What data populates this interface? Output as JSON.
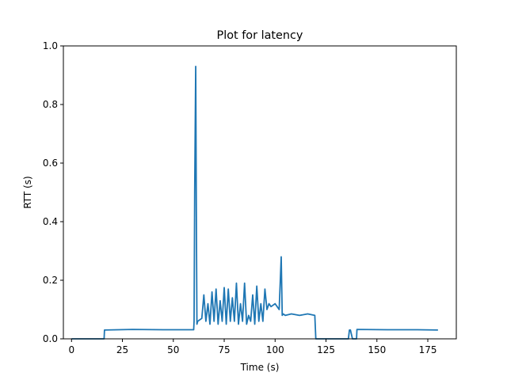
{
  "chart_data": {
    "type": "line",
    "title": "Plot for latency",
    "xlabel": "Time (s)",
    "ylabel": "RTT (s)",
    "xlim": [
      -4,
      189
    ],
    "ylim": [
      0,
      1.0
    ],
    "xticks": [
      0,
      25,
      50,
      75,
      100,
      125,
      150,
      175
    ],
    "yticks": [
      0.0,
      0.2,
      0.4,
      0.6,
      0.8,
      1.0
    ],
    "ytick_labels": [
      "0.0",
      "0.2",
      "0.4",
      "0.6",
      "0.8",
      "1.0"
    ],
    "grid": false,
    "line_color": "#1f77b4",
    "series": [
      {
        "x": [
          0,
          16,
          16.2,
          30,
          45,
          60,
          60.2,
          60.5,
          61,
          61.3,
          61.6,
          62,
          64,
          65,
          66,
          67,
          68,
          69,
          70,
          71,
          72,
          73,
          74,
          75,
          76,
          77,
          78,
          79,
          80,
          81,
          82,
          83,
          84,
          85,
          86,
          87,
          88,
          89,
          90,
          91,
          92,
          93,
          94,
          95,
          96,
          97,
          98,
          100,
          102,
          103,
          103.5,
          104,
          105,
          108,
          112,
          116,
          119.5,
          120,
          122,
          130,
          136,
          136.5,
          137,
          138,
          140,
          140.2,
          155,
          170,
          180
        ],
        "y": [
          0.0,
          0.0,
          0.03,
          0.032,
          0.031,
          0.031,
          0.06,
          0.5,
          0.93,
          0.45,
          0.05,
          0.06,
          0.07,
          0.15,
          0.06,
          0.12,
          0.05,
          0.16,
          0.06,
          0.17,
          0.05,
          0.13,
          0.06,
          0.175,
          0.05,
          0.17,
          0.06,
          0.14,
          0.06,
          0.19,
          0.05,
          0.12,
          0.06,
          0.19,
          0.05,
          0.08,
          0.06,
          0.15,
          0.05,
          0.18,
          0.06,
          0.12,
          0.06,
          0.17,
          0.1,
          0.12,
          0.11,
          0.12,
          0.1,
          0.28,
          0.08,
          0.085,
          0.08,
          0.085,
          0.08,
          0.085,
          0.08,
          0.0,
          0.0,
          0.0,
          0.0,
          0.03,
          0.03,
          0.0,
          0.0,
          0.032,
          0.031,
          0.031,
          0.03
        ]
      }
    ]
  }
}
